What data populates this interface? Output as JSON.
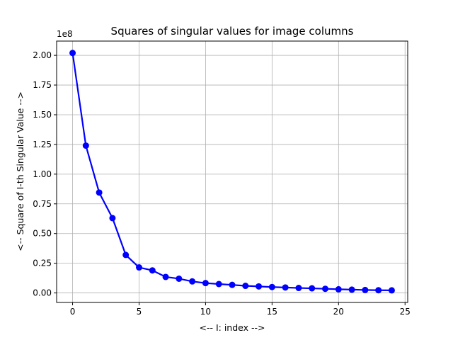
{
  "chart_data": {
    "type": "line",
    "title": "Squares of singular values for image columns",
    "xlabel": "<-- I: index -->",
    "ylabel": "<-- Square of I-th Singular Value -->",
    "y_offset_label": "1e8",
    "xlim": [
      -1.2,
      25.2
    ],
    "ylim": [
      -0.08,
      2.12
    ],
    "x_ticks": [
      0,
      5,
      10,
      15,
      20,
      25
    ],
    "x_tick_labels": [
      "0",
      "5",
      "10",
      "15",
      "20",
      "25"
    ],
    "y_ticks": [
      0.0,
      0.25,
      0.5,
      0.75,
      1.0,
      1.25,
      1.5,
      1.75,
      2.0
    ],
    "y_tick_labels": [
      "0.00",
      "0.25",
      "0.50",
      "0.75",
      "1.00",
      "1.25",
      "1.50",
      "1.75",
      "2.00"
    ],
    "grid": true,
    "series": [
      {
        "color": "#0000ff",
        "marker": "circle",
        "x": [
          0,
          1,
          2,
          3,
          4,
          5,
          6,
          7,
          8,
          9,
          10,
          11,
          12,
          13,
          14,
          15,
          16,
          17,
          18,
          19,
          20,
          21,
          22,
          23,
          24
        ],
        "y": [
          2.02,
          1.24,
          0.845,
          0.63,
          0.32,
          0.215,
          0.19,
          0.135,
          0.12,
          0.097,
          0.083,
          0.075,
          0.068,
          0.06,
          0.055,
          0.05,
          0.046,
          0.042,
          0.039,
          0.035,
          0.031,
          0.028,
          0.025,
          0.023,
          0.022
        ]
      }
    ]
  }
}
